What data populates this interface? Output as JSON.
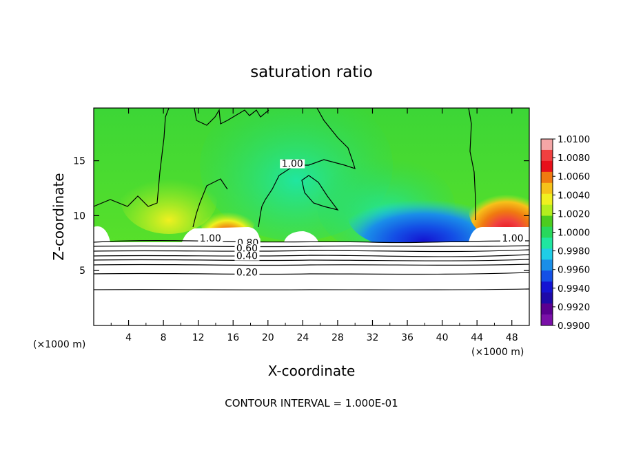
{
  "chart_data": {
    "type": "heatmap",
    "title": "saturation ratio",
    "xlabel": "X-coordinate",
    "ylabel": "Z-coordinate",
    "x_units": "(×1000 m)",
    "x_units_right": "(×1000 m)",
    "xlim": [
      0,
      50
    ],
    "ylim": [
      0,
      19.8
    ],
    "x_ticks": [
      4,
      8,
      12,
      16,
      20,
      24,
      28,
      32,
      36,
      40,
      44,
      48
    ],
    "y_ticks": [
      5,
      10,
      15
    ],
    "footer": "CONTOUR INTERVAL = 1.000E-01",
    "colorbar": {
      "min": 0.99,
      "max": 1.01,
      "labels": [
        "1.0100",
        "1.0080",
        "1.0060",
        "1.0040",
        "1.0020",
        "1.0000",
        "0.9980",
        "0.9960",
        "0.9940",
        "0.9920",
        "0.9900"
      ],
      "colors": [
        "#f4a6a6",
        "#f04040",
        "#e8101a",
        "#f07a10",
        "#f6c21a",
        "#f0f020",
        "#b4ee1e",
        "#4ccc1e",
        "#28d85c",
        "#20e6a0",
        "#20cde6",
        "#1a8ee8",
        "#1450e6",
        "#1414d2",
        "#1e0aa8",
        "#5a0090",
        "#7a10a8"
      ]
    },
    "contour_labels": [
      {
        "text": "1.00",
        "x": 22.8,
        "z": 14.5
      },
      {
        "text": "1.00",
        "x": 13.4,
        "z": 7.7
      },
      {
        "text": "0.80",
        "x": 17.7,
        "z": 7.3
      },
      {
        "text": "0.60",
        "x": 17.6,
        "z": 6.8
      },
      {
        "text": "0.40",
        "x": 17.6,
        "z": 6.1
      },
      {
        "text": "0.20",
        "x": 17.6,
        "z": 4.6
      },
      {
        "text": "1.00",
        "x": 48.1,
        "z": 7.7
      }
    ],
    "stable_layer_contours_z": [
      3.3,
      4.8,
      5.6,
      5.95,
      6.35,
      6.75,
      7.0,
      7.25,
      7.6
    ]
  }
}
